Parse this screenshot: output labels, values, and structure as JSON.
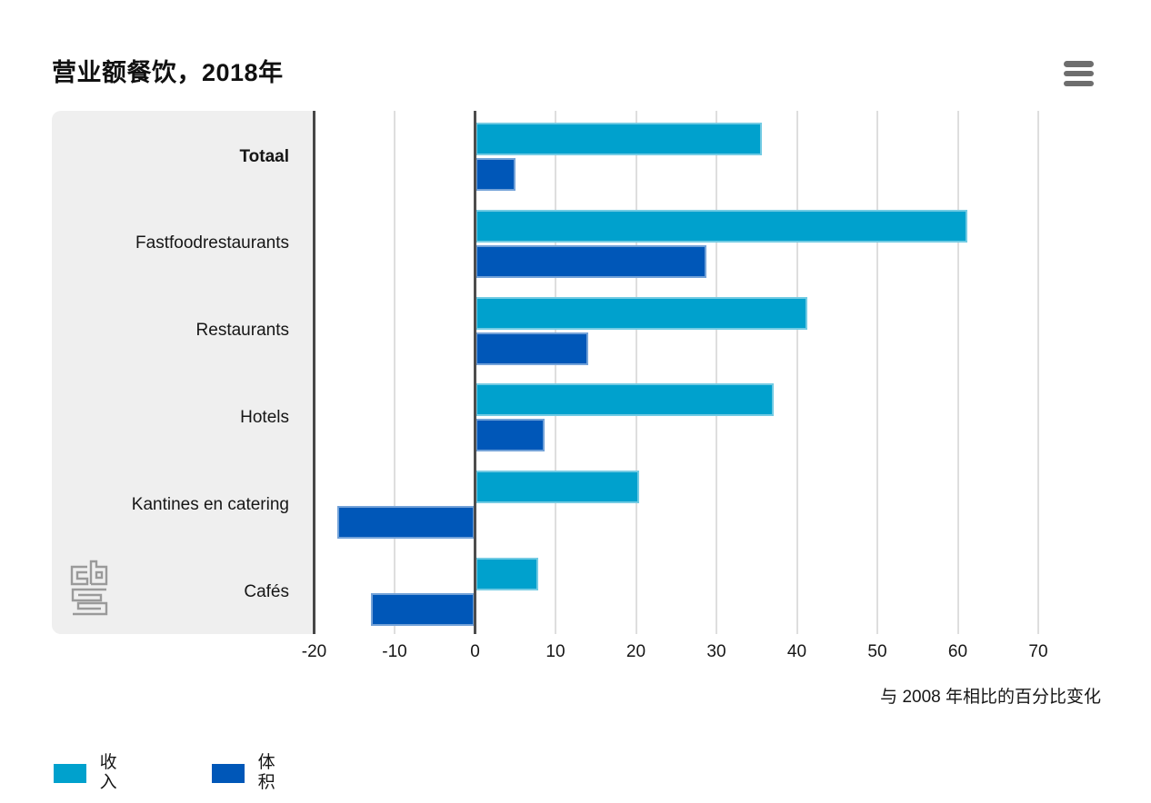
{
  "header": {
    "title_regular": "营业额餐饮，",
    "title_bold": "2018年",
    "menu_icon": "hamburger-menu"
  },
  "chart_data": {
    "type": "bar",
    "orientation": "horizontal",
    "title": "营业额餐饮，2018年",
    "categories": [
      "Totaal",
      "Fastfoodrestaurants",
      "Restaurants",
      "Hotels",
      "Kantines en catering",
      "Cafés"
    ],
    "bold_categories": [
      "Totaal"
    ],
    "series": [
      {
        "name": "收入",
        "color": "#00a1cd",
        "values": [
          35.7,
          61.2,
          41.3,
          37.1,
          20.4,
          7.9
        ]
      },
      {
        "name": "体积",
        "color": "#0057b8",
        "values": [
          5.0,
          28.8,
          14.1,
          8.7,
          -17.1,
          -12.9
        ]
      }
    ],
    "xlabel": "与 2008 年相比的百分比变化",
    "xlim": [
      -20,
      78
    ],
    "xticks": [
      -20,
      -10,
      0,
      10,
      20,
      30,
      40,
      50,
      60,
      70
    ],
    "grid": true,
    "legend_position": "bottom"
  },
  "branding": {
    "logo": "cbs-logo"
  },
  "colors": {
    "series_income": "#00a1cd",
    "series_volume": "#0057b8",
    "panel_bg": "#efefef",
    "gridline": "#dedede",
    "axis_line": "#474747",
    "menu_icon": "#6e6e6e",
    "logo_gray": "#9a9a9a"
  }
}
